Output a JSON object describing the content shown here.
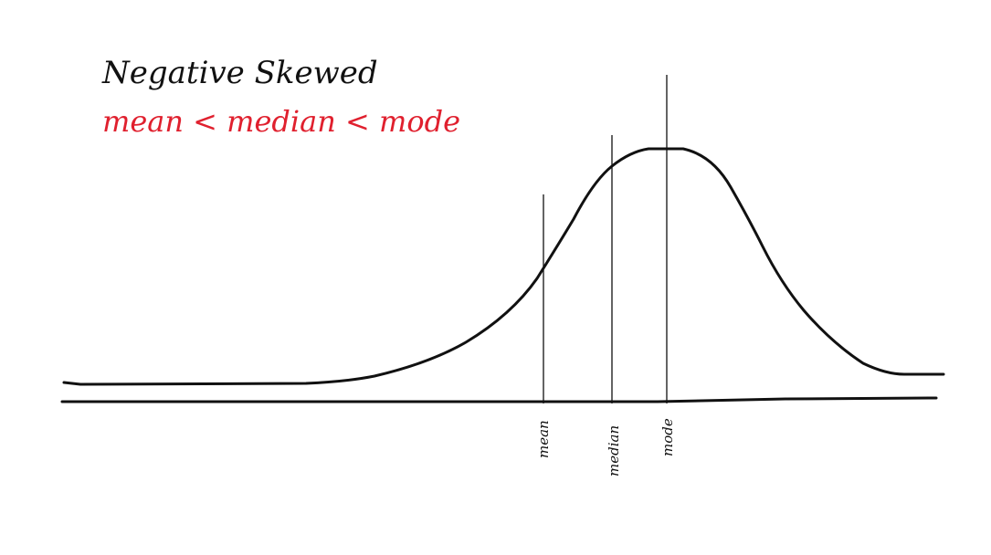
{
  "title": "Negative Skewed",
  "subtitle": "mean < median < mode",
  "colors": {
    "title": "#111111",
    "subtitle": "#e0202e",
    "curve": "#111111",
    "axis": "#111111",
    "marker_line": "#111111"
  },
  "markers": [
    {
      "id": "mean",
      "label": "mean"
    },
    {
      "id": "median",
      "label": "median"
    },
    {
      "id": "mode",
      "label": "mode"
    }
  ]
}
